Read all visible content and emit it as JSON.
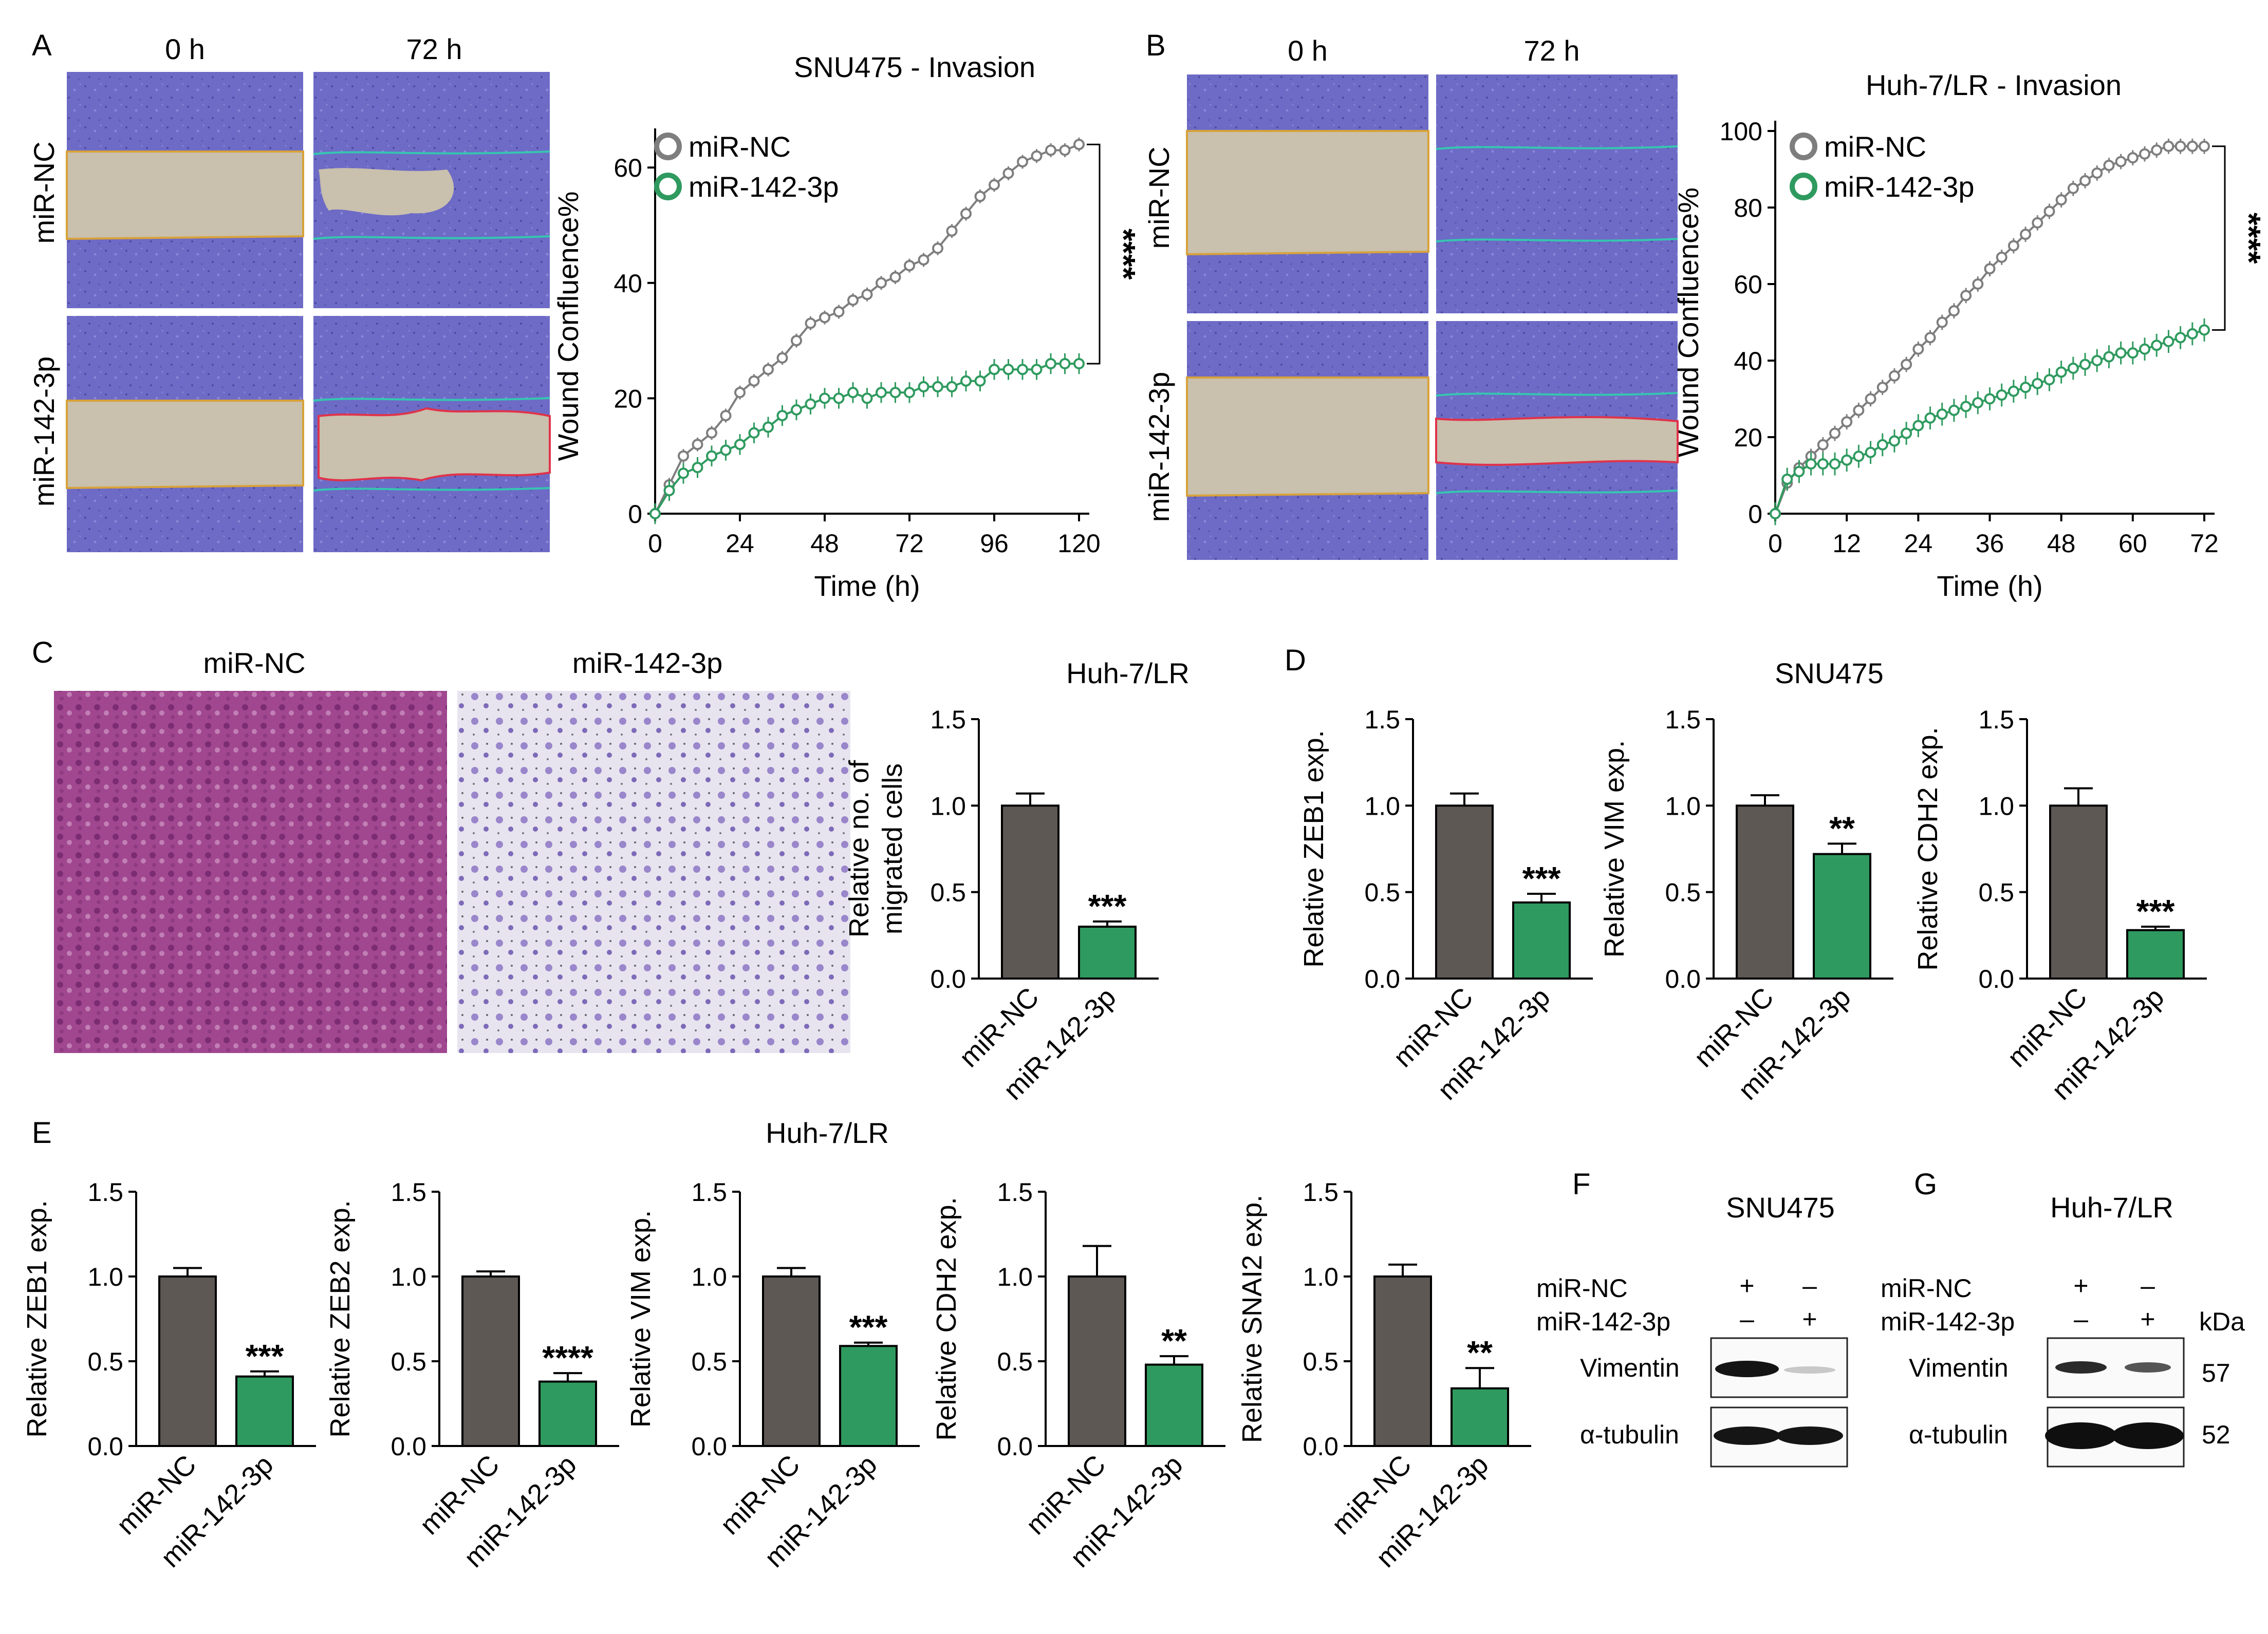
{
  "colors": {
    "nc": "#5e5855",
    "mir": "#2f9a5f",
    "nc_line": "#7e7e7e",
    "mir_line": "#2f9a5f",
    "wound_bg": "#6e6cc8",
    "gap": "#c8bfae",
    "crystal_a": "#9c3f8c",
    "crystal_b": "#8f7cc4"
  },
  "panels": {
    "A": "A",
    "B": "B",
    "C": "C",
    "D": "D",
    "E": "E",
    "F": "F",
    "G": "G"
  },
  "wound_images": {
    "A": {
      "col_0h": "0 h",
      "col_72h": "72 h",
      "row_nc": "miR-NC",
      "row_mir": "miR-142-3p"
    },
    "B": {
      "col_0h": "0 h",
      "col_72h": "72 h",
      "row_nc": "miR-NC",
      "row_mir": "miR-142-3p"
    }
  },
  "transwell": {
    "nc_label": "miR-NC",
    "mir_label": "miR-142-3p"
  },
  "charts": {
    "D": {
      "group_title": "SNU475"
    },
    "E": {
      "group_title": "Huh-7/LR"
    }
  },
  "chart_data": [
    {
      "id": "A",
      "type": "line",
      "title": "SNU475 - Invasion",
      "xlabel": "Time (h)",
      "ylabel": "Wound Confluence%",
      "xlim": [
        0,
        120
      ],
      "ylim": [
        0,
        65
      ],
      "xticks": [
        0,
        24,
        48,
        72,
        96,
        120
      ],
      "yticks": [
        0,
        20,
        40,
        60
      ],
      "significance": "****",
      "series": [
        {
          "name": "miR-NC",
          "x": [
            0,
            4,
            8,
            12,
            16,
            20,
            24,
            28,
            32,
            36,
            40,
            44,
            48,
            52,
            56,
            60,
            64,
            68,
            72,
            76,
            80,
            84,
            88,
            92,
            96,
            100,
            104,
            108,
            112,
            116,
            120
          ],
          "y": [
            0,
            5,
            10,
            12,
            14,
            17,
            21,
            23,
            25,
            27,
            30,
            33,
            34,
            35,
            37,
            38,
            40,
            41,
            43,
            44,
            46,
            49,
            52,
            55,
            57,
            59,
            61,
            62,
            63,
            63,
            64
          ],
          "err": 1.2
        },
        {
          "name": "miR-142-3p",
          "x": [
            0,
            4,
            8,
            12,
            16,
            20,
            24,
            28,
            32,
            36,
            40,
            44,
            48,
            52,
            56,
            60,
            64,
            68,
            72,
            76,
            80,
            84,
            88,
            92,
            96,
            100,
            104,
            108,
            112,
            116,
            120
          ],
          "y": [
            0,
            4,
            7,
            8,
            10,
            11,
            12,
            14,
            15,
            17,
            18,
            19,
            20,
            20,
            21,
            20,
            21,
            21,
            21,
            22,
            22,
            22,
            23,
            23,
            25,
            25,
            25,
            25,
            26,
            26,
            26
          ],
          "err": 1.8
        }
      ]
    },
    {
      "id": "B",
      "type": "line",
      "title": "Huh-7/LR - Invasion",
      "xlabel": "Time (h)",
      "ylabel": "Wound Confluence%",
      "xlim": [
        0,
        72
      ],
      "ylim": [
        0,
        100
      ],
      "xticks": [
        0,
        12,
        24,
        36,
        48,
        60,
        72
      ],
      "yticks": [
        0,
        20,
        40,
        60,
        80,
        100
      ],
      "significance": "****",
      "series": [
        {
          "name": "miR-NC",
          "x": [
            0,
            2,
            4,
            6,
            8,
            10,
            12,
            14,
            16,
            18,
            20,
            22,
            24,
            26,
            28,
            30,
            32,
            34,
            36,
            38,
            40,
            42,
            44,
            46,
            48,
            50,
            52,
            54,
            56,
            58,
            60,
            62,
            64,
            66,
            68,
            70,
            72
          ],
          "y": [
            0,
            8,
            12,
            15,
            18,
            21,
            24,
            27,
            30,
            33,
            36,
            39,
            43,
            46,
            50,
            53,
            57,
            60,
            64,
            67,
            70,
            73,
            76,
            79,
            82,
            85,
            87,
            89,
            91,
            92,
            93,
            94,
            95,
            96,
            96,
            96,
            96
          ],
          "err": 2
        },
        {
          "name": "miR-142-3p",
          "x": [
            0,
            2,
            4,
            6,
            8,
            10,
            12,
            14,
            16,
            18,
            20,
            22,
            24,
            26,
            28,
            30,
            32,
            34,
            36,
            38,
            40,
            42,
            44,
            46,
            48,
            50,
            52,
            54,
            56,
            58,
            60,
            62,
            64,
            66,
            68,
            70,
            72
          ],
          "y": [
            0,
            9,
            11,
            13,
            13,
            13,
            14,
            15,
            16,
            18,
            19,
            21,
            23,
            25,
            26,
            27,
            28,
            29,
            30,
            31,
            32,
            33,
            34,
            35,
            37,
            38,
            39,
            40,
            41,
            42,
            42,
            43,
            44,
            45,
            46,
            47,
            48
          ],
          "err": 3
        }
      ]
    },
    {
      "id": "C",
      "type": "bar",
      "title": "Huh-7/LR",
      "ylabel": [
        "Relative no. of",
        "migrated cells"
      ],
      "categories": [
        "miR-NC",
        "miR-142-3p"
      ],
      "values": [
        1.0,
        0.3
      ],
      "errors": [
        0.07,
        0.03
      ],
      "ylim": [
        0,
        1.5
      ],
      "yticks": [
        "0.0",
        "0.5",
        "1.0",
        "1.5"
      ],
      "significance": "***"
    },
    {
      "id": "D1",
      "type": "bar",
      "ylabel": "Relative ZEB1 exp.",
      "categories": [
        "miR-NC",
        "miR-142-3p"
      ],
      "values": [
        1.0,
        0.44
      ],
      "errors": [
        0.07,
        0.05
      ],
      "ylim": [
        0,
        1.5
      ],
      "yticks": [
        "0.0",
        "0.5",
        "1.0",
        "1.5"
      ],
      "significance": "***"
    },
    {
      "id": "D2",
      "type": "bar",
      "ylabel": "Relative VIM exp.",
      "categories": [
        "miR-NC",
        "miR-142-3p"
      ],
      "values": [
        1.0,
        0.72
      ],
      "errors": [
        0.06,
        0.06
      ],
      "ylim": [
        0,
        1.5
      ],
      "yticks": [
        "0.0",
        "0.5",
        "1.0",
        "1.5"
      ],
      "significance": "**"
    },
    {
      "id": "D3",
      "type": "bar",
      "ylabel": "Relative CDH2 exp.",
      "categories": [
        "miR-NC",
        "miR-142-3p"
      ],
      "values": [
        1.0,
        0.28
      ],
      "errors": [
        0.1,
        0.02
      ],
      "ylim": [
        0,
        1.5
      ],
      "yticks": [
        "0.0",
        "0.5",
        "1.0",
        "1.5"
      ],
      "significance": "***"
    },
    {
      "id": "E1",
      "type": "bar",
      "ylabel": "Relative ZEB1 exp.",
      "categories": [
        "miR-NC",
        "miR-142-3p"
      ],
      "values": [
        1.0,
        0.41
      ],
      "errors": [
        0.05,
        0.03
      ],
      "ylim": [
        0,
        1.5
      ],
      "yticks": [
        "0.0",
        "0.5",
        "1.0",
        "1.5"
      ],
      "significance": "***"
    },
    {
      "id": "E2",
      "type": "bar",
      "ylabel": "Relative ZEB2 exp.",
      "categories": [
        "miR-NC",
        "miR-142-3p"
      ],
      "values": [
        1.0,
        0.38
      ],
      "errors": [
        0.03,
        0.05
      ],
      "ylim": [
        0,
        1.5
      ],
      "yticks": [
        "0.0",
        "0.5",
        "1.0",
        "1.5"
      ],
      "significance": "****"
    },
    {
      "id": "E3",
      "type": "bar",
      "ylabel": "Relative VIM exp.",
      "categories": [
        "miR-NC",
        "miR-142-3p"
      ],
      "values": [
        1.0,
        0.59
      ],
      "errors": [
        0.05,
        0.02
      ],
      "ylim": [
        0,
        1.5
      ],
      "yticks": [
        "0.0",
        "0.5",
        "1.0",
        "1.5"
      ],
      "significance": "***"
    },
    {
      "id": "E4",
      "type": "bar",
      "ylabel": "Relative CDH2 exp.",
      "categories": [
        "miR-NC",
        "miR-142-3p"
      ],
      "values": [
        1.0,
        0.48
      ],
      "errors": [
        0.18,
        0.05
      ],
      "ylim": [
        0,
        1.5
      ],
      "yticks": [
        "0.0",
        "0.5",
        "1.0",
        "1.5"
      ],
      "significance": "**"
    },
    {
      "id": "E5",
      "type": "bar",
      "ylabel": "Relative SNAI2 exp.",
      "categories": [
        "miR-NC",
        "miR-142-3p"
      ],
      "values": [
        1.0,
        0.34
      ],
      "errors": [
        0.07,
        0.12
      ],
      "ylim": [
        0,
        1.5
      ],
      "yticks": [
        "0.0",
        "0.5",
        "1.0",
        "1.5"
      ],
      "significance": "**"
    }
  ],
  "blots": {
    "F": {
      "title": "SNU475",
      "row_nc": "miR-NC",
      "row_mir": "miR-142-3p",
      "nc_marks": [
        "+",
        "–"
      ],
      "mir_marks": [
        "–",
        "+"
      ],
      "band1": "Vimentin",
      "band2": "α-tubulin"
    },
    "G": {
      "title": "Huh-7/LR",
      "row_nc": "miR-NC",
      "row_mir": "miR-142-3p",
      "nc_marks": [
        "+",
        "–"
      ],
      "mir_marks": [
        "–",
        "+"
      ],
      "band1": "Vimentin",
      "band2": "α-tubulin",
      "kda_label": "kDa",
      "kda1": "57",
      "kda2": "52"
    }
  }
}
